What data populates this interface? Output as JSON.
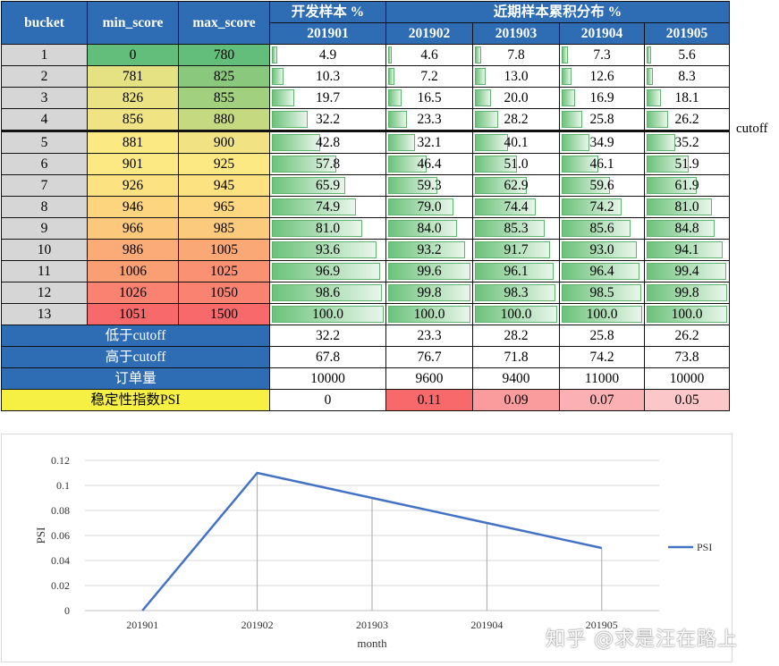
{
  "table": {
    "header": {
      "bucket": "bucket",
      "min_score": "min_score",
      "max_score": "max_score",
      "dev_group": "开发样本 %",
      "recent_group": "近期样本累积分布 %",
      "months": [
        "201901",
        "201902",
        "201903",
        "201904",
        "201905"
      ]
    },
    "rows": [
      {
        "bucket": "1",
        "min": "0",
        "max": "780",
        "vals": [
          "4.9",
          "4.6",
          "7.8",
          "7.3",
          "5.6"
        ]
      },
      {
        "bucket": "2",
        "min": "781",
        "max": "825",
        "vals": [
          "10.3",
          "7.2",
          "13.0",
          "12.6",
          "8.3"
        ]
      },
      {
        "bucket": "3",
        "min": "826",
        "max": "855",
        "vals": [
          "19.7",
          "16.5",
          "20.0",
          "16.9",
          "18.1"
        ]
      },
      {
        "bucket": "4",
        "min": "856",
        "max": "880",
        "vals": [
          "32.2",
          "23.3",
          "28.2",
          "25.8",
          "26.2"
        ]
      },
      {
        "bucket": "5",
        "min": "881",
        "max": "900",
        "vals": [
          "42.8",
          "32.1",
          "40.1",
          "34.9",
          "35.2"
        ]
      },
      {
        "bucket": "6",
        "min": "901",
        "max": "925",
        "vals": [
          "57.8",
          "46.4",
          "51.0",
          "46.1",
          "51.9"
        ]
      },
      {
        "bucket": "7",
        "min": "926",
        "max": "945",
        "vals": [
          "65.9",
          "59.3",
          "62.9",
          "59.6",
          "61.9"
        ]
      },
      {
        "bucket": "8",
        "min": "946",
        "max": "965",
        "vals": [
          "74.9",
          "79.0",
          "74.4",
          "74.2",
          "81.0"
        ]
      },
      {
        "bucket": "9",
        "min": "966",
        "max": "985",
        "vals": [
          "81.0",
          "84.0",
          "85.3",
          "85.6",
          "84.8"
        ]
      },
      {
        "bucket": "10",
        "min": "986",
        "max": "1005",
        "vals": [
          "93.6",
          "93.2",
          "91.7",
          "93.0",
          "94.1"
        ]
      },
      {
        "bucket": "11",
        "min": "1006",
        "max": "1025",
        "vals": [
          "96.9",
          "99.6",
          "96.1",
          "96.4",
          "99.4"
        ]
      },
      {
        "bucket": "12",
        "min": "1026",
        "max": "1050",
        "vals": [
          "98.6",
          "99.8",
          "98.3",
          "98.5",
          "99.8"
        ]
      },
      {
        "bucket": "13",
        "min": "1051",
        "max": "1500",
        "vals": [
          "100.0",
          "100.0",
          "100.0",
          "100.0",
          "100.0"
        ]
      }
    ],
    "summary": [
      {
        "label": "低于cutoff",
        "vals": [
          "32.2",
          "23.3",
          "28.2",
          "25.8",
          "26.2"
        ]
      },
      {
        "label": "高于cutoff",
        "vals": [
          "67.8",
          "76.7",
          "71.8",
          "74.2",
          "73.8"
        ]
      },
      {
        "label": "订单量",
        "vals": [
          "10000",
          "9600",
          "9400",
          "11000",
          "10000"
        ]
      }
    ],
    "psi_row": {
      "label": "稳定性指数PSI",
      "vals": [
        "0",
        "0.11",
        "0.09",
        "0.07",
        "0.05"
      ]
    },
    "cutoff_label": "cutoff",
    "min_colors": [
      "#63be7b",
      "#e4e283",
      "#eae283",
      "#f0e383",
      "#fbe983",
      "#fde983",
      "#fde282",
      "#fdd57f",
      "#fcc87c",
      "#fbab77",
      "#fa9e74",
      "#f98370",
      "#f8696b"
    ],
    "max_colors": [
      "#63be7b",
      "#8ac97d",
      "#a1d07e",
      "#c4d980",
      "#f1e383",
      "#fde983",
      "#fde282",
      "#fdd880",
      "#fcca7d",
      "#fba877",
      "#fa9173",
      "#f98370",
      "#f8696b"
    ],
    "psi_colors": [
      "#ffffff",
      "#f8696b",
      "#fa9b9d",
      "#fbb1b3",
      "#fcc7c8"
    ]
  },
  "chart_data": {
    "type": "line",
    "categories": [
      "201901",
      "201902",
      "201903",
      "201904",
      "201905"
    ],
    "series": [
      {
        "name": "PSI",
        "values": [
          0,
          0.11,
          0.09,
          0.07,
          0.05
        ]
      }
    ],
    "xlabel": "month",
    "ylabel": "PSI",
    "ylim": [
      0,
      0.12
    ],
    "yticks": [
      "0",
      "0.02",
      "0.04",
      "0.06",
      "0.08",
      "0.1",
      "0.12"
    ],
    "grid": true,
    "legend": "right",
    "line_color": "#4472c4"
  },
  "watermark": "知乎 @求是汪在路上"
}
